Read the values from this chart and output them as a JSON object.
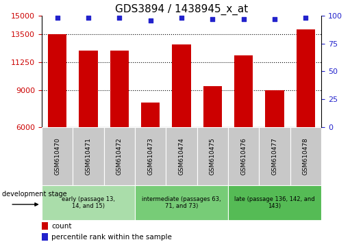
{
  "title": "GDS3894 / 1438945_x_at",
  "categories": [
    "GSM610470",
    "GSM610471",
    "GSM610472",
    "GSM610473",
    "GSM610474",
    "GSM610475",
    "GSM610476",
    "GSM610477",
    "GSM610478"
  ],
  "counts": [
    13500,
    12200,
    12200,
    8000,
    12700,
    9300,
    11800,
    9000,
    13900
  ],
  "percentile_ranks": [
    98,
    98,
    98,
    96,
    98,
    97,
    97,
    97,
    98
  ],
  "ylim_left": [
    6000,
    15000
  ],
  "ylim_right": [
    0,
    100
  ],
  "yticks_left": [
    6000,
    9000,
    11250,
    13500,
    15000
  ],
  "yticks_right": [
    0,
    25,
    50,
    75,
    100
  ],
  "bar_color": "#CC0000",
  "marker_color": "#2222CC",
  "tick_box_color": "#C8C8C8",
  "groups": [
    {
      "label": "early (passage 13,\n14, and 15)",
      "start": 0,
      "end": 3,
      "color": "#AADDAA"
    },
    {
      "label": "intermediate (passages 63,\n71, and 73)",
      "start": 3,
      "end": 6,
      "color": "#77CC77"
    },
    {
      "label": "late (passage 136, 142, and\n143)",
      "start": 6,
      "end": 9,
      "color": "#55BB55"
    }
  ],
  "legend_count_label": "count",
  "legend_percentile_label": "percentile rank within the sample",
  "dev_stage_label": "development stage"
}
